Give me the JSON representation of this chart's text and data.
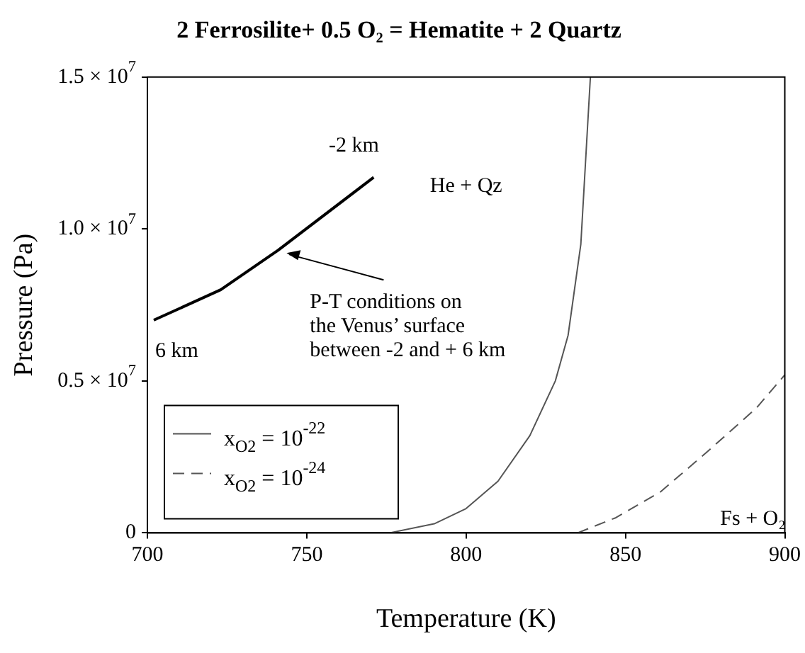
{
  "chart_data": {
    "type": "line",
    "title": "2 Ferrosilite+ 0.5 O₂ = Hematite + 2 Quartz",
    "xlabel": "Temperature (K)",
    "ylabel": "Pressure (Pa)",
    "xlim": [
      700,
      900
    ],
    "xticks": [
      700,
      750,
      800,
      850,
      900
    ],
    "ylim": [
      0,
      15000000
    ],
    "yticks": [
      0,
      {
        "value": 5000000,
        "label": "0.5 × 10$^{7}$"
      },
      {
        "value": 10000000,
        "label": "1.0 × 10$^{7}$"
      },
      {
        "value": 15000000,
        "label": "1.5 × 10$^{7}$"
      }
    ],
    "grid": false,
    "legend": "bottom left",
    "marker": "none",
    "series": [
      {
        "color": "#000000",
        "line_style": "solid",
        "x": [
          702,
          723,
          741,
          771
        ],
        "values": [
          7000000,
          8000000,
          9300000,
          11700000
        ]
      },
      {
        "name": "x$_{O2}$ = 10$^{-22}$",
        "color": "#555555",
        "line_style": "solid",
        "x": [
          776,
          790,
          800,
          810,
          820,
          828,
          832,
          836,
          839
        ],
        "values": [
          0,
          300000,
          800000,
          1700000,
          3200000,
          5000000,
          6500000,
          9500000,
          15000000
        ]
      },
      {
        "name": "x$_{O2}$ = 10$^{-24}$",
        "color": "#555555",
        "line_style": "dashed",
        "x": [
          835,
          847,
          861,
          876,
          891,
          900
        ],
        "values": [
          0,
          500000,
          1350000,
          2700000,
          4100000,
          5200000
        ]
      }
    ],
    "annotations": [
      {
        "text": "-2 km",
        "x": 771,
        "y": 11700000
      },
      {
        "text": "6 km",
        "x": 702,
        "y": 7000000
      },
      "P-T conditions on\nthe Venus’ surface\nbetween -2 and + 6 km",
      "He + Qz",
      "Fs + O₂"
    ]
  }
}
